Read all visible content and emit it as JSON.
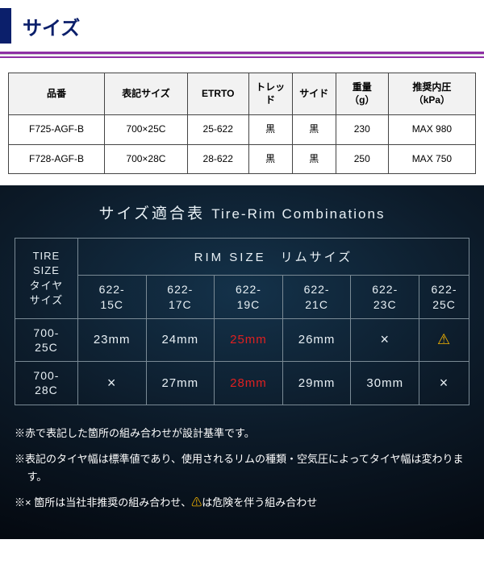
{
  "header": {
    "title": "サイズ"
  },
  "spec_table": {
    "columns": [
      "品番",
      "表記サイズ",
      "ETRTO",
      "トレッド",
      "サイド",
      "重量\n（g）",
      "推奨内圧\n（kPa）"
    ],
    "rows": [
      [
        "F725-AGF-B",
        "700×25C",
        "25-622",
        "黒",
        "黒",
        "230",
        "MAX 980"
      ],
      [
        "F728-AGF-B",
        "700×28C",
        "28-622",
        "黒",
        "黒",
        "250",
        "MAX 750"
      ]
    ],
    "col_widths": [
      "110px",
      "95px",
      "70px",
      "50px",
      "50px",
      "60px",
      "100px"
    ]
  },
  "combo": {
    "title_jp": "サイズ適合表",
    "title_en": "Tire-Rim Combinations",
    "corner": "TIRE\nSIZE\nタイヤ\nサイズ",
    "rim_header": "RIM SIZE　リムサイズ",
    "rim_cols": [
      "622-\n15C",
      "622-\n17C",
      "622-\n19C",
      "622-\n21C",
      "622-\n23C",
      "622-\n25C"
    ],
    "tire_rows": [
      "700-\n25C",
      "700-\n28C"
    ],
    "cells": [
      [
        {
          "v": "23mm"
        },
        {
          "v": "24mm"
        },
        {
          "v": "25mm",
          "red": true
        },
        {
          "v": "26mm"
        },
        {
          "v": "×",
          "x": true
        },
        {
          "v": "⚠",
          "warn": true
        }
      ],
      [
        {
          "v": "×",
          "x": true
        },
        {
          "v": "27mm"
        },
        {
          "v": "28mm",
          "red": true
        },
        {
          "v": "29mm"
        },
        {
          "v": "30mm"
        },
        {
          "v": "×",
          "x": true
        }
      ]
    ]
  },
  "notes": {
    "n1": "※赤で表記した箇所の組み合わせが設計基準です。",
    "n2": "※表記のタイヤ幅は標準値であり、使用されるリムの種類・空気圧によってタイヤ幅は変わります。",
    "n3_a": "※× 箇所は当社非推奨の組み合わせ、",
    "n3_warn": "⚠",
    "n3_b": "は危険を伴う組み合わせ"
  }
}
